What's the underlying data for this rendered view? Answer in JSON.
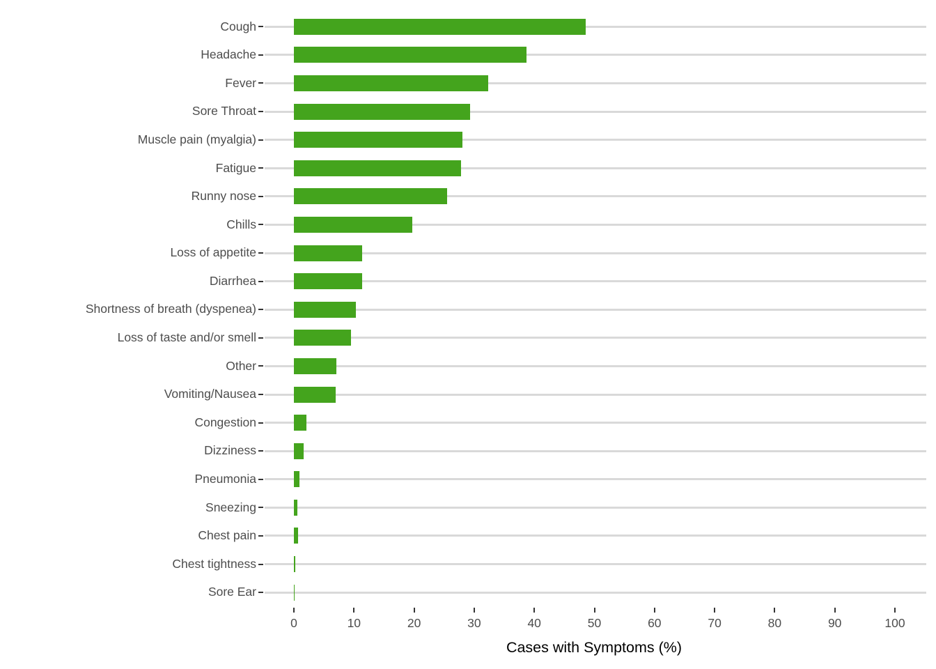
{
  "chart_data": {
    "type": "bar",
    "orientation": "horizontal",
    "title": "",
    "xlabel": "Cases with Symptoms (%)",
    "ylabel": "",
    "xlim": [
      0,
      100
    ],
    "x_ticks": [
      0,
      10,
      20,
      30,
      40,
      50,
      60,
      70,
      80,
      90,
      100
    ],
    "legend": "none",
    "grid": "horizontal light-gray line behind each category bar",
    "categories": [
      "Cough",
      "Headache",
      "Fever",
      "Sore Throat",
      "Muscle pain (myalgia)",
      "Fatigue",
      "Runny nose",
      "Chills",
      "Loss of appetite",
      "Diarrhea",
      "Shortness of breath (dyspenea)",
      "Loss of taste and/or smell",
      "Other",
      "Vomiting/Nausea",
      "Congestion",
      "Dizziness",
      "Pneumonia",
      "Sneezing",
      "Chest pain",
      "Chest tightness",
      "Sore Ear"
    ],
    "values": [
      48.5,
      38.7,
      32.3,
      29.3,
      28.0,
      27.8,
      25.5,
      19.7,
      11.4,
      11.3,
      10.3,
      9.5,
      7.1,
      7.0,
      2.1,
      1.6,
      0.9,
      0.6,
      0.7,
      0.25,
      0.15
    ]
  },
  "colors": {
    "bar_fill": "#44a41d",
    "gridline": "#d9d9d9",
    "tick_mark": "#333333",
    "axis_text": "#4d4d4d",
    "axis_title": "#000000",
    "background": "#ffffff"
  }
}
